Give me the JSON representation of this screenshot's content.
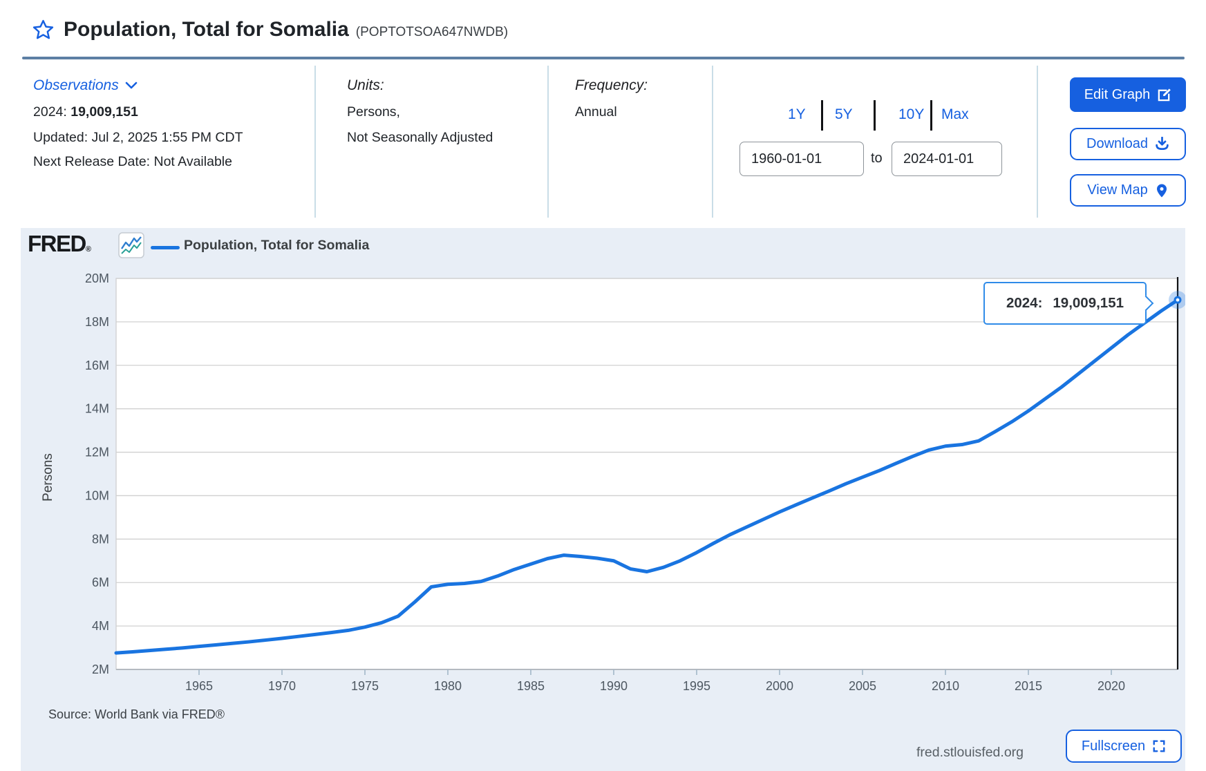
{
  "page": {
    "title": "Population, Total for Somalia",
    "series_id": "(POPTOTSOA647NWDB)"
  },
  "observations": {
    "label": "Observations",
    "latest_period": "2024:",
    "latest_value": "19,009,151",
    "updated": "Updated: Jul 2, 2025 1:55 PM CDT",
    "next_release": "Next Release Date: Not Available"
  },
  "units": {
    "label": "Units:",
    "line1": "Persons,",
    "line2": "Not Seasonally Adjusted"
  },
  "frequency": {
    "label": "Frequency:",
    "value": "Annual"
  },
  "range_selector": {
    "options": [
      "1Y",
      "5Y",
      "10Y",
      "Max"
    ],
    "start_date": "1960-01-01",
    "to_label": "to",
    "end_date": "2024-01-01"
  },
  "actions": {
    "edit_graph": "Edit Graph",
    "download": "Download",
    "view_map": "View Map",
    "fullscreen": "Fullscreen"
  },
  "branding": {
    "logo": "FRED",
    "registered": "®",
    "site": "fred.stlouisfed.org"
  },
  "legend": {
    "label": "Population, Total for Somalia"
  },
  "source": "Source: World Bank via FRED®",
  "tooltip": {
    "year": "2024:",
    "value": "19,009,151"
  },
  "colors": {
    "accent": "#1660e0",
    "line": "#1974e0",
    "halo": "rgba(25,116,224,0.28)",
    "tooltip_border": "#2f8be8",
    "header_rule": "#5d7fa4",
    "divider": "#c9dde7",
    "chart_bg": "#e8eef6",
    "grid": "#d0d0d0",
    "axis_text": "#4d5761",
    "crosshair": "#101214"
  },
  "chart_data": {
    "type": "line",
    "title": "Population, Total for Somalia",
    "xlabel": "",
    "ylabel": "Persons",
    "units": "millions of persons",
    "grid": true,
    "legend_position": "top-left",
    "x_start": 1960,
    "x_end": 2024,
    "ylim": [
      2,
      20
    ],
    "y_tick_values": [
      20,
      18,
      16,
      14,
      12,
      10,
      8,
      6,
      4,
      2
    ],
    "y_ticks": [
      "20M",
      "18M",
      "16M",
      "14M",
      "12M",
      "10M",
      "8M",
      "6M",
      "4M",
      "2M"
    ],
    "x_ticks": [
      1965,
      1970,
      1975,
      1980,
      1985,
      1990,
      1995,
      2000,
      2005,
      2010,
      2015,
      2020
    ],
    "years": [
      1960,
      1961,
      1962,
      1963,
      1964,
      1965,
      1966,
      1967,
      1968,
      1969,
      1970,
      1971,
      1972,
      1973,
      1974,
      1975,
      1976,
      1977,
      1978,
      1979,
      1980,
      1981,
      1982,
      1983,
      1984,
      1985,
      1986,
      1987,
      1988,
      1989,
      1990,
      1991,
      1992,
      1993,
      1994,
      1995,
      1996,
      1997,
      1998,
      1999,
      2000,
      2001,
      2002,
      2003,
      2004,
      2005,
      2006,
      2007,
      2008,
      2009,
      2010,
      2011,
      2012,
      2013,
      2014,
      2015,
      2016,
      2017,
      2018,
      2019,
      2020,
      2021,
      2022,
      2023,
      2024
    ],
    "values_millions": [
      2.76,
      2.81,
      2.87,
      2.93,
      2.99,
      3.06,
      3.13,
      3.2,
      3.27,
      3.35,
      3.43,
      3.52,
      3.61,
      3.7,
      3.8,
      3.95,
      4.15,
      4.45,
      5.1,
      5.8,
      5.92,
      5.96,
      6.05,
      6.3,
      6.6,
      6.85,
      7.1,
      7.26,
      7.2,
      7.12,
      7.0,
      6.63,
      6.5,
      6.7,
      7.0,
      7.38,
      7.8,
      8.2,
      8.55,
      8.9,
      9.25,
      9.58,
      9.9,
      10.22,
      10.55,
      10.85,
      11.15,
      11.48,
      11.8,
      12.1,
      12.28,
      12.35,
      12.52,
      12.95,
      13.4,
      13.9,
      14.45,
      15.0,
      15.6,
      16.2,
      16.8,
      17.4,
      17.95,
      18.5,
      19.009151
    ],
    "last_point": {
      "year": 2024,
      "value_persons": "19,009,151"
    }
  }
}
